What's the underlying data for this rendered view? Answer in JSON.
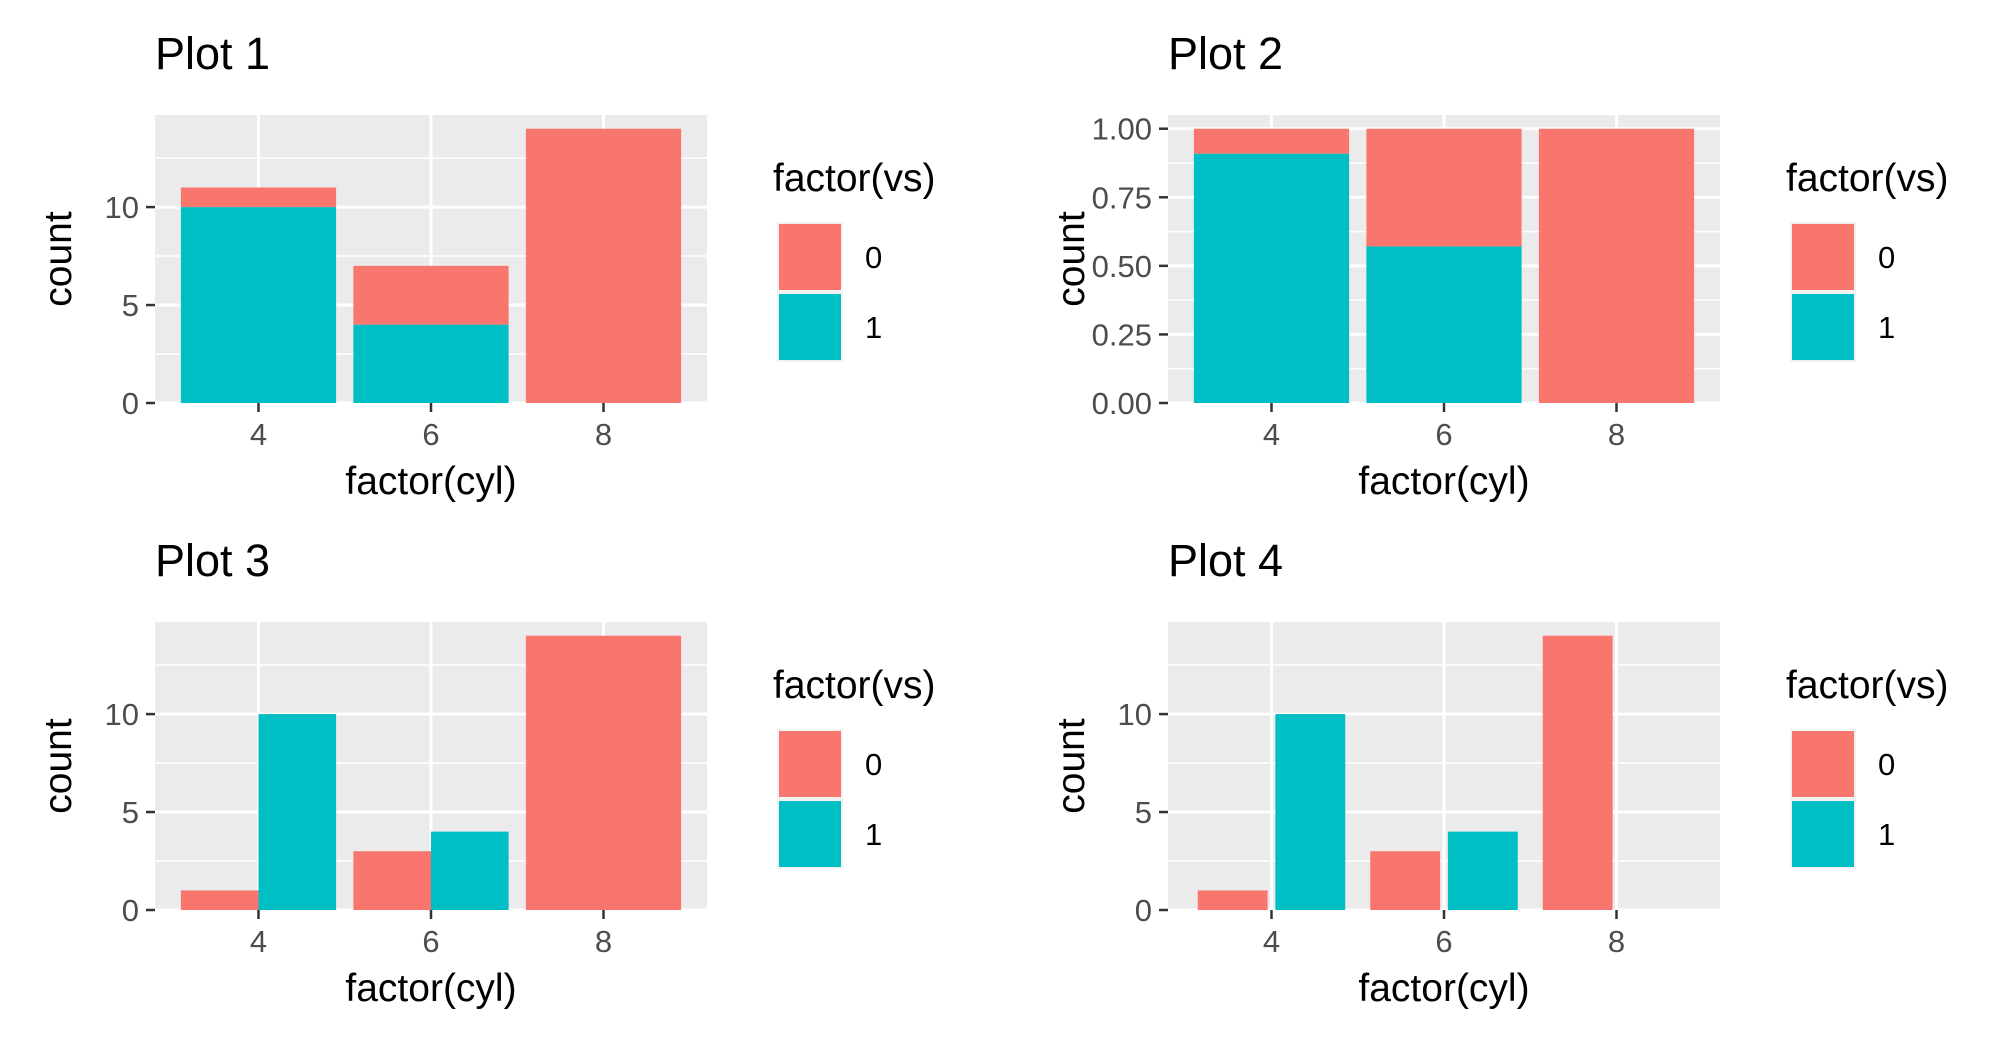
{
  "colors": {
    "vs_0": "#F8766D",
    "vs_1": "#00BFC4",
    "panel": "#EBEBEB"
  },
  "chart_data": [
    {
      "type": "bar",
      "title": "Plot 1",
      "position": "stack",
      "xlabel": "factor(cyl)",
      "ylabel": "count",
      "categories": [
        "4",
        "6",
        "8"
      ],
      "series": [
        {
          "name": "0",
          "values": [
            1,
            3,
            14
          ]
        },
        {
          "name": "1",
          "values": [
            10,
            4,
            0
          ]
        }
      ],
      "ylim": [
        0,
        14.7
      ],
      "yticks": [
        0,
        5,
        10
      ],
      "ytick_labels": [
        "0",
        "5",
        "10"
      ],
      "legend": {
        "title": "factor(vs)",
        "labels": [
          "0",
          "1"
        ],
        "placement": "right"
      },
      "grid": true
    },
    {
      "type": "bar",
      "title": "Plot 2",
      "position": "fill",
      "xlabel": "factor(cyl)",
      "ylabel": "count",
      "categories": [
        "4",
        "6",
        "8"
      ],
      "series": [
        {
          "name": "0",
          "values": [
            0.091,
            0.429,
            1.0
          ]
        },
        {
          "name": "1",
          "values": [
            0.909,
            0.571,
            0.0
          ]
        }
      ],
      "ylim": [
        0,
        1.05
      ],
      "yticks": [
        0,
        0.25,
        0.5,
        0.75,
        1
      ],
      "ytick_labels": [
        "0.00",
        "0.25",
        "0.50",
        "0.75",
        "1.00"
      ],
      "legend": {
        "title": "factor(vs)",
        "labels": [
          "0",
          "1"
        ],
        "placement": "right"
      },
      "grid": true
    },
    {
      "type": "bar",
      "title": "Plot 3",
      "position": "dodge",
      "xlabel": "factor(cyl)",
      "ylabel": "count",
      "categories": [
        "4",
        "6",
        "8"
      ],
      "series": [
        {
          "name": "0",
          "values": [
            1,
            3,
            14
          ]
        },
        {
          "name": "1",
          "values": [
            10,
            4,
            0
          ]
        }
      ],
      "ylim": [
        0,
        14.7
      ],
      "yticks": [
        0,
        5,
        10
      ],
      "ytick_labels": [
        "0",
        "5",
        "10"
      ],
      "legend": {
        "title": "factor(vs)",
        "labels": [
          "0",
          "1"
        ],
        "placement": "right"
      },
      "grid": true
    },
    {
      "type": "bar",
      "title": "Plot 4",
      "position": "dodge2",
      "xlabel": "factor(cyl)",
      "ylabel": "count",
      "categories": [
        "4",
        "6",
        "8"
      ],
      "series": [
        {
          "name": "0",
          "values": [
            1,
            3,
            14
          ]
        },
        {
          "name": "1",
          "values": [
            10,
            4,
            0
          ]
        }
      ],
      "ylim": [
        0,
        14.7
      ],
      "yticks": [
        0,
        5,
        10
      ],
      "ytick_labels": [
        "0",
        "5",
        "10"
      ],
      "legend": {
        "title": "factor(vs)",
        "labels": [
          "0",
          "1"
        ],
        "placement": "right"
      },
      "grid": true
    }
  ]
}
